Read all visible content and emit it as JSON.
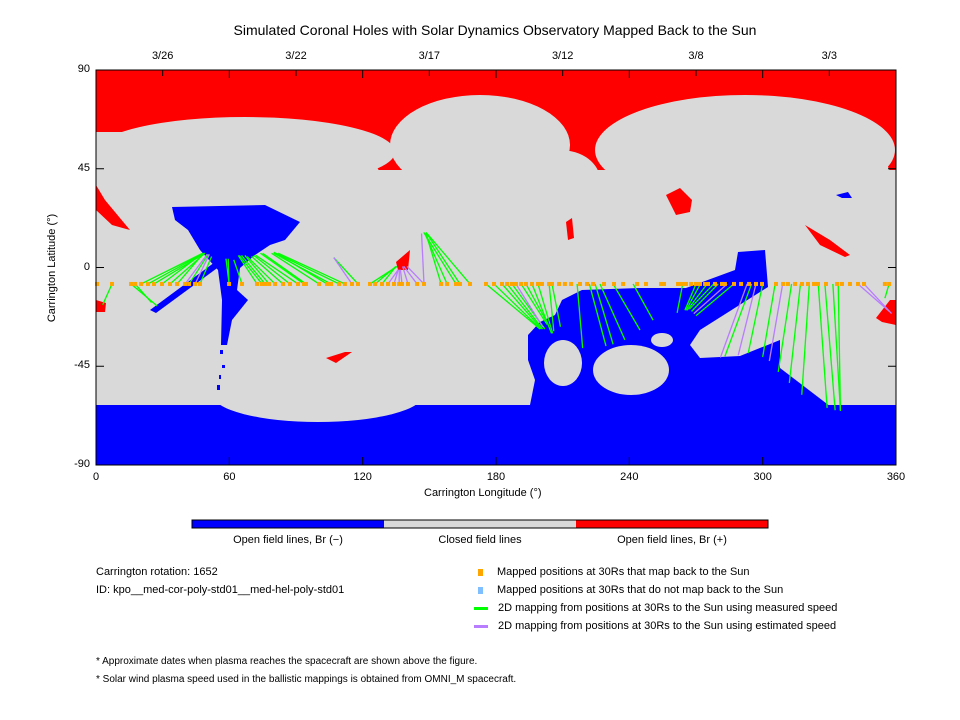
{
  "chart_data": {
    "type": "map",
    "title": "Simulated Coronal Holes with Solar Dynamics Observatory Mapped Back to the Sun",
    "xlabel": "Carrington Longitude (°)",
    "ylabel": "Carrington Latitude (°)",
    "xlim": [
      0,
      360
    ],
    "ylim": [
      -90,
      90
    ],
    "xticks": [
      "0",
      "60",
      "120",
      "180",
      "240",
      "300",
      "360"
    ],
    "xtick_values": [
      0,
      60,
      120,
      180,
      240,
      300,
      360
    ],
    "yticks": [
      "90",
      "45",
      "0",
      "-45",
      "-90"
    ],
    "ytick_values": [
      90,
      45,
      0,
      -45,
      -90
    ],
    "top_axis_dates": [
      {
        "label": "3/26",
        "lon": 30
      },
      {
        "label": "3/22",
        "lon": 90
      },
      {
        "label": "3/17",
        "lon": 150
      },
      {
        "label": "3/12",
        "lon": 210
      },
      {
        "label": "3/8",
        "lon": 270
      },
      {
        "label": "3/3",
        "lon": 330
      }
    ],
    "colorbar": {
      "labels": [
        "Open field lines, Br (−)",
        "Closed field lines",
        "Open field lines, Br (+)"
      ],
      "colors": [
        "#0000ff",
        "#d9d9d9",
        "#ff0000"
      ]
    },
    "mapped_latitude": -7.5,
    "mapped_positions_lon": [
      0.5,
      7.2,
      15.8,
      17.6,
      20.3,
      23.4,
      26.1,
      29.7,
      33.3,
      36.5,
      40.1,
      41.9,
      44.6,
      46.8,
      59.9,
      65.7,
      72.5,
      74.7,
      76.1,
      77.9,
      80.6,
      84.2,
      87.3,
      90.9,
      93.6,
      94.5,
      100.4,
      104,
      105.8,
      109.4,
      112,
      115.2,
      117.9,
      123.3,
      125.6,
      128.7,
      131.4,
      134.1,
      136.4,
      137.7,
      140.4,
      144.5,
      147.6,
      155.3,
      158,
      162,
      163.8,
      168.3,
      175.5,
      179.1,
      182.7,
      185,
      187.2,
      189,
      191.3,
      193.5,
      196.2,
      198.9,
      200.7,
      203.9,
      205.2,
      208.4,
      211,
      213.8,
      217.8,
      221,
      223.7,
      228.6,
      233.1,
      237.2,
      243.5,
      247.5,
      254.3,
      255.6,
      261.9,
      263.7,
      265.5,
      267.8,
      270,
      271.8,
      274.1,
      275.4,
      278.6,
      281.7,
      283,
      287.1,
      290.3,
      293.9,
      297,
      299.7,
      306,
      309.2,
      311.4,
      314.6,
      317.7,
      320.4,
      323.1,
      324.9,
      328.5,
      333.5,
      335.7,
      339.3,
      342.9,
      345.6,
      355,
      356.9
    ],
    "mappings": [
      [
        7.2,
        3,
        -17,
        "m"
      ],
      [
        15.8,
        27.5,
        -17.5,
        "m"
      ],
      [
        17.6,
        25,
        -16,
        "m"
      ],
      [
        20.3,
        48,
        6.5,
        "m"
      ],
      [
        23.4,
        48.5,
        6.5,
        "m"
      ],
      [
        26.1,
        49,
        6.5,
        "m"
      ],
      [
        29.7,
        48,
        6.5,
        "m"
      ],
      [
        33.3,
        49,
        6.5,
        "m"
      ],
      [
        36.5,
        48,
        6,
        "m"
      ],
      [
        40.1,
        50,
        6,
        "e"
      ],
      [
        41.9,
        50.5,
        6,
        "m"
      ],
      [
        44.6,
        51,
        6,
        "e"
      ],
      [
        46.8,
        52,
        5,
        "m"
      ],
      [
        59.9,
        58.5,
        4,
        "m"
      ],
      [
        59.9,
        59.5,
        4,
        "m"
      ],
      [
        65.7,
        62,
        3.5,
        "m"
      ],
      [
        72.5,
        64,
        5.5,
        "m"
      ],
      [
        74.7,
        64.5,
        5.5,
        "m"
      ],
      [
        76.1,
        65.5,
        5.5,
        "m"
      ],
      [
        77.9,
        67,
        5.5,
        "m"
      ],
      [
        80.6,
        68,
        5,
        "m"
      ],
      [
        84.2,
        70,
        5,
        "m"
      ],
      [
        87.3,
        71,
        5.5,
        "m"
      ],
      [
        90.9,
        72,
        5.5,
        "m"
      ],
      [
        93.6,
        74,
        6.5,
        "m"
      ],
      [
        94.5,
        75,
        6.5,
        "m"
      ],
      [
        100.4,
        79,
        6.5,
        "m"
      ],
      [
        104,
        80,
        7,
        "m"
      ],
      [
        105.8,
        80,
        6.5,
        "m"
      ],
      [
        109.4,
        81,
        6.5,
        "m"
      ],
      [
        112,
        82,
        6.5,
        "m"
      ],
      [
        117.9,
        107,
        4.5,
        "m"
      ],
      [
        115.2,
        107,
        4.5,
        "e"
      ],
      [
        123.3,
        135.5,
        0.5,
        "m"
      ],
      [
        125.6,
        135,
        0.5,
        "m"
      ],
      [
        128.7,
        135,
        0.5,
        "m"
      ],
      [
        131.4,
        136,
        -1,
        "e"
      ],
      [
        134.1,
        136,
        -1,
        "e"
      ],
      [
        136.4,
        136.5,
        -1,
        "e"
      ],
      [
        137.7,
        137,
        -1,
        "e"
      ],
      [
        140.4,
        138,
        0.5,
        "e"
      ],
      [
        144.5,
        138.5,
        0.5,
        "e"
      ],
      [
        147.6,
        140,
        0.5,
        "e"
      ],
      [
        155.3,
        148.5,
        15.5,
        "m"
      ],
      [
        158,
        148,
        15.5,
        "m"
      ],
      [
        162,
        147.5,
        16,
        "m"
      ],
      [
        163.8,
        148.5,
        16,
        "m"
      ],
      [
        168.3,
        149,
        15.5,
        "m"
      ],
      [
        147.6,
        146.5,
        15.5,
        "e"
      ],
      [
        175.5,
        199.8,
        -28,
        "m"
      ],
      [
        179.1,
        200,
        -28,
        "m"
      ],
      [
        182.7,
        200.5,
        -28,
        "m"
      ],
      [
        185,
        201,
        -28,
        "m"
      ],
      [
        187.2,
        202,
        -28,
        "m"
      ],
      [
        189,
        201,
        -27,
        "e"
      ],
      [
        191.3,
        203,
        -26,
        "m"
      ],
      [
        193.5,
        203.5,
        -26,
        "m"
      ],
      [
        196.2,
        205,
        -30,
        "m"
      ],
      [
        198.9,
        205.5,
        -30,
        "m"
      ],
      [
        203.9,
        206,
        -29,
        "m"
      ],
      [
        205.2,
        209,
        -27,
        "m"
      ],
      [
        216.5,
        219,
        -36.7,
        "m"
      ],
      [
        222,
        229.5,
        -35.8,
        "m"
      ],
      [
        224.6,
        232.7,
        -35,
        "m"
      ],
      [
        226.8,
        238,
        -33,
        "m"
      ],
      [
        232.7,
        244.8,
        -28.5,
        "m"
      ],
      [
        241.7,
        250.7,
        -24,
        "m"
      ],
      [
        264,
        261.5,
        -20.7,
        "m"
      ],
      [
        270,
        265,
        -19.5,
        "m"
      ],
      [
        272,
        265.5,
        -19.5,
        "m"
      ],
      [
        275,
        266,
        -19.5,
        "m"
      ],
      [
        278,
        267,
        -19,
        "m"
      ],
      [
        280,
        268,
        -20,
        "m"
      ],
      [
        284,
        269,
        -21,
        "e"
      ],
      [
        287,
        270,
        -22,
        "m"
      ],
      [
        293,
        281,
        -41,
        "e"
      ],
      [
        295,
        283,
        -40.5,
        "m"
      ],
      [
        297,
        289,
        -40,
        "e"
      ],
      [
        300,
        293.5,
        -39,
        "m"
      ],
      [
        305.6,
        300,
        -40.8,
        "m"
      ],
      [
        309,
        303,
        -42.6,
        "e"
      ],
      [
        313,
        307,
        -47.6,
        "m"
      ],
      [
        317,
        312,
        -52.6,
        "m"
      ],
      [
        321,
        317.6,
        -58,
        "m"
      ],
      [
        325,
        329,
        -64,
        "m"
      ],
      [
        328,
        332.6,
        -65,
        "m"
      ],
      [
        331.6,
        335,
        -65.4,
        "m"
      ],
      [
        334,
        335,
        -65,
        "m"
      ],
      [
        342.9,
        357,
        -20,
        "e"
      ],
      [
        345.6,
        358,
        -21,
        "e"
      ],
      [
        356.9,
        355,
        -14,
        "m"
      ]
    ],
    "colors": {
      "measured": "#00ff00",
      "estimated": "#b87cff",
      "mapped": "#ffa500",
      "unmapped": "#7fbfff"
    }
  },
  "info": {
    "rotation": "Carrington rotation: 1652",
    "id": "ID: kpo__med-cor-poly-std01__med-hel-poly-std01"
  },
  "legend": [
    "Mapped positions at 30Rs that map back to the Sun",
    "Mapped positions at 30Rs that do not map back to the Sun",
    "2D mapping from positions at 30Rs to the Sun using measured speed",
    "2D mapping from positions at 30Rs to the Sun using estimated speed"
  ],
  "notes": [
    "* Approximate dates when plasma reaches the spacecraft are shown above the figure.",
    "* Solar wind plasma speed used in the ballistic mappings is obtained from OMNI_M spacecraft."
  ]
}
